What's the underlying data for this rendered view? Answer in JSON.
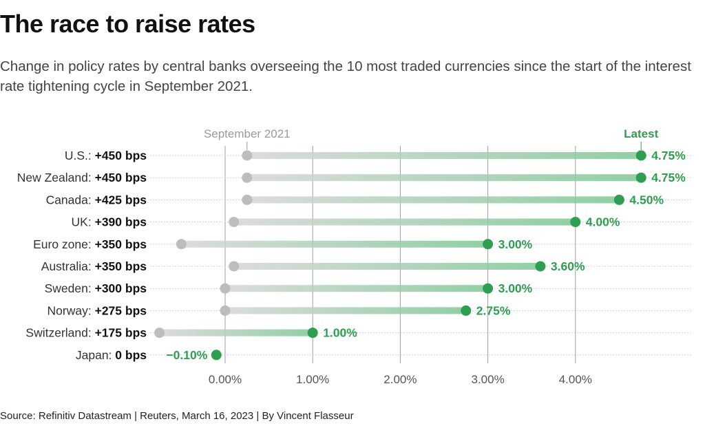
{
  "title": "The race to raise rates",
  "subtitle": "Change in policy rates by central banks overseeing the 10 most traded currencies since the start of the interest rate tightening cycle in September 2021.",
  "source": "Source: Refinitiv Datastream | Reuters, March 16, 2023 | By Vincent Flasseur",
  "colors": {
    "start": "#bdbdbd",
    "latest": "#2e9e50",
    "grid": "#9e9e9e",
    "row_line": "#c4c4c4"
  },
  "chart_data": {
    "type": "dumbbell",
    "start_label": "September 2021",
    "latest_label": "Latest",
    "x_ticks": [
      {
        "value": 0,
        "label": "0.00%"
      },
      {
        "value": 1,
        "label": "1.00%"
      },
      {
        "value": 2,
        "label": "2.00%"
      },
      {
        "value": 3,
        "label": "3.00%"
      },
      {
        "value": 4,
        "label": "4.00%"
      }
    ],
    "xlim": [
      -0.8,
      5.1
    ],
    "grid": true,
    "rows": [
      {
        "country": "U.S.:",
        "change": "+450 bps",
        "start": 0.25,
        "latest": 4.75,
        "latest_label": "4.75%"
      },
      {
        "country": "New Zealand:",
        "change": "+450 bps",
        "start": 0.25,
        "latest": 4.75,
        "latest_label": "4.75%"
      },
      {
        "country": "Canada:",
        "change": "+425 bps",
        "start": 0.25,
        "latest": 4.5,
        "latest_label": "4.50%"
      },
      {
        "country": "UK:",
        "change": "+390 bps",
        "start": 0.1,
        "latest": 4.0,
        "latest_label": "4.00%"
      },
      {
        "country": "Euro zone:",
        "change": "+350 bps",
        "start": -0.5,
        "latest": 3.0,
        "latest_label": "3.00%"
      },
      {
        "country": "Australia:",
        "change": "+350 bps",
        "start": 0.1,
        "latest": 3.6,
        "latest_label": "3.60%"
      },
      {
        "country": "Sweden:",
        "change": "+300 bps",
        "start": 0.0,
        "latest": 3.0,
        "latest_label": "3.00%"
      },
      {
        "country": "Norway:",
        "change": "+275 bps",
        "start": 0.0,
        "latest": 2.75,
        "latest_label": "2.75%"
      },
      {
        "country": "Switzerland:",
        "change": "+175 bps",
        "start": -0.75,
        "latest": 1.0,
        "latest_label": "1.00%"
      },
      {
        "country": "Japan:",
        "change": "0 bps",
        "start": -0.1,
        "latest": -0.1,
        "latest_label": "−0.10%"
      }
    ]
  }
}
